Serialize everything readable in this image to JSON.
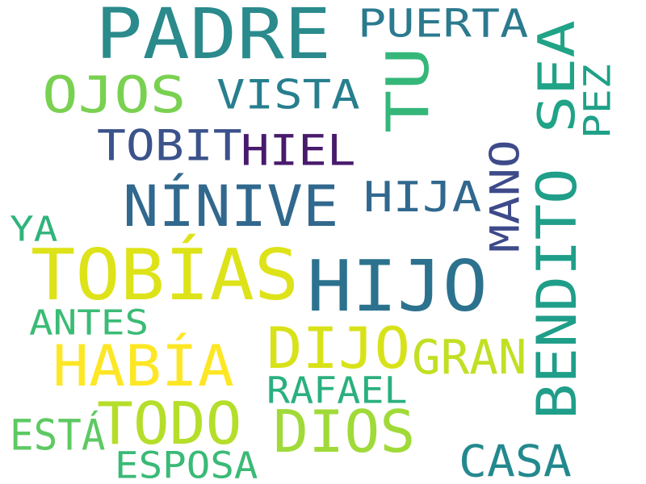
{
  "word_cloud": {
    "words": [
      {
        "id": "padre",
        "text": "PADRE",
        "color": "#2a8a8c"
      },
      {
        "id": "puerta",
        "text": "PUERTA",
        "color": "#2b7a8e"
      },
      {
        "id": "tu",
        "text": "TU",
        "color": "#35b779"
      },
      {
        "id": "sea",
        "text": "SEA",
        "color": "#20a386"
      },
      {
        "id": "pez",
        "text": "PEZ",
        "color": "#1fa188"
      },
      {
        "id": "ojos",
        "text": "OJOS",
        "color": "#7ad151"
      },
      {
        "id": "vista",
        "text": "VISTA",
        "color": "#277f8e"
      },
      {
        "id": "tobit",
        "text": "TOBIT",
        "color": "#3b528b"
      },
      {
        "id": "hiel",
        "text": "HIEL",
        "color": "#481a6c"
      },
      {
        "id": "ninive",
        "text": "NÍNIVE",
        "color": "#31688e"
      },
      {
        "id": "hija",
        "text": "HIJA",
        "color": "#31688e"
      },
      {
        "id": "mano",
        "text": "MANO",
        "color": "#3e4a89"
      },
      {
        "id": "bendito",
        "text": "BENDITO",
        "color": "#1f9e89"
      },
      {
        "id": "ya",
        "text": "YA",
        "color": "#2fb47c"
      },
      {
        "id": "tobias",
        "text": "TOBÍAS",
        "color": "#dde318"
      },
      {
        "id": "hijo",
        "text": "HIJO",
        "color": "#2c728e"
      },
      {
        "id": "antes",
        "text": "ANTES",
        "color": "#3bbb75"
      },
      {
        "id": "habia",
        "text": "HABÍA",
        "color": "#fde725"
      },
      {
        "id": "dijo",
        "text": "DIJO",
        "color": "#d8e219"
      },
      {
        "id": "gran",
        "text": "GRAN",
        "color": "#c2df23"
      },
      {
        "id": "rafael",
        "text": "RAFAEL",
        "color": "#2ab07f"
      },
      {
        "id": "todo",
        "text": "TODO",
        "color": "#b5de2b"
      },
      {
        "id": "dios",
        "text": "DIOS",
        "color": "#a0da39"
      },
      {
        "id": "esta",
        "text": "ESTÁ",
        "color": "#5ec962"
      },
      {
        "id": "esposa",
        "text": "ESPOSA",
        "color": "#3aba76"
      },
      {
        "id": "casa",
        "text": "CASA",
        "color": "#23898e"
      }
    ]
  }
}
